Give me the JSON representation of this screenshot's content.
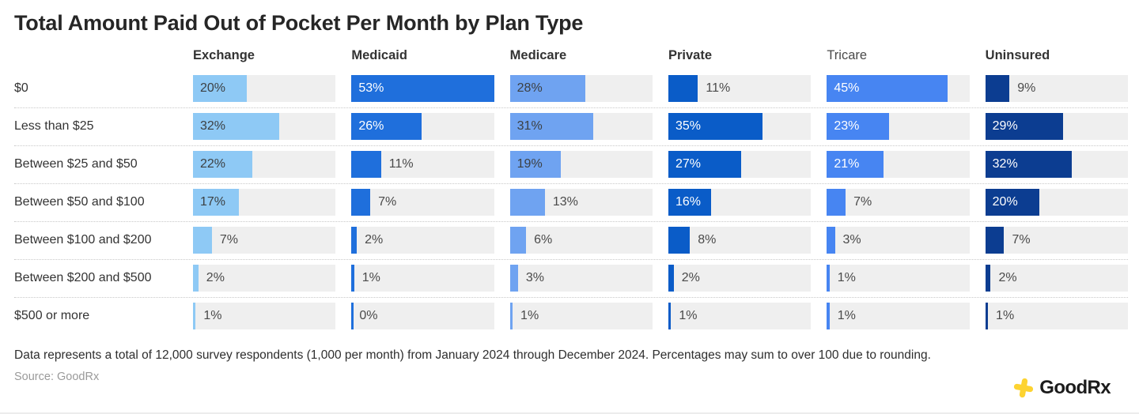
{
  "title": "Total Amount Paid Out of Pocket Per Month by Plan Type",
  "chart_data": {
    "type": "bar",
    "orientation": "horizontal",
    "categories": [
      "$0",
      "Less than $25",
      "Between $25 and $50",
      "Between $50 and $100",
      "Between $100 and $200",
      "Between $200 and $500",
      "$500 or more"
    ],
    "series": [
      {
        "name": "Exchange",
        "bold_header": true,
        "color": "#8EC9F5",
        "label_inside_color": "#3C4043",
        "values": [
          20,
          32,
          22,
          17,
          7,
          2,
          1
        ]
      },
      {
        "name": "Medicaid",
        "bold_header": true,
        "color": "#1F6FDC",
        "label_inside_color": "#FFFFFF",
        "values": [
          53,
          26,
          11,
          7,
          2,
          1,
          0
        ]
      },
      {
        "name": "Medicare",
        "bold_header": true,
        "color": "#6FA3F1",
        "label_inside_color": "#3C4043",
        "values": [
          28,
          31,
          19,
          13,
          6,
          3,
          1
        ]
      },
      {
        "name": "Private",
        "bold_header": true,
        "color": "#0A5CC8",
        "label_inside_color": "#FFFFFF",
        "values": [
          11,
          35,
          27,
          16,
          8,
          2,
          1
        ]
      },
      {
        "name": "Tricare",
        "bold_header": false,
        "color": "#4785F2",
        "label_inside_color": "#FFFFFF",
        "values": [
          45,
          23,
          21,
          7,
          3,
          1,
          1
        ]
      },
      {
        "name": "Uninsured",
        "bold_header": true,
        "color": "#0C3D91",
        "label_inside_color": "#FFFFFF",
        "values": [
          9,
          29,
          32,
          20,
          7,
          2,
          1
        ]
      }
    ],
    "value_suffix": "%",
    "scale_max": 53,
    "inside_label_min_value": 15,
    "track_color": "#EFEFEF",
    "grid": "dotted-row-separators",
    "legend_position": "column-headers"
  },
  "footer": {
    "note": "Data represents a total of 12,000 survey respondents (1,000 per month) from January 2024 through December 2024. Percentages may sum to over 100 due to rounding.",
    "source": "Source: GoodRx",
    "logo_text": "GoodRx",
    "logo_plus_color": "#FDD331"
  }
}
